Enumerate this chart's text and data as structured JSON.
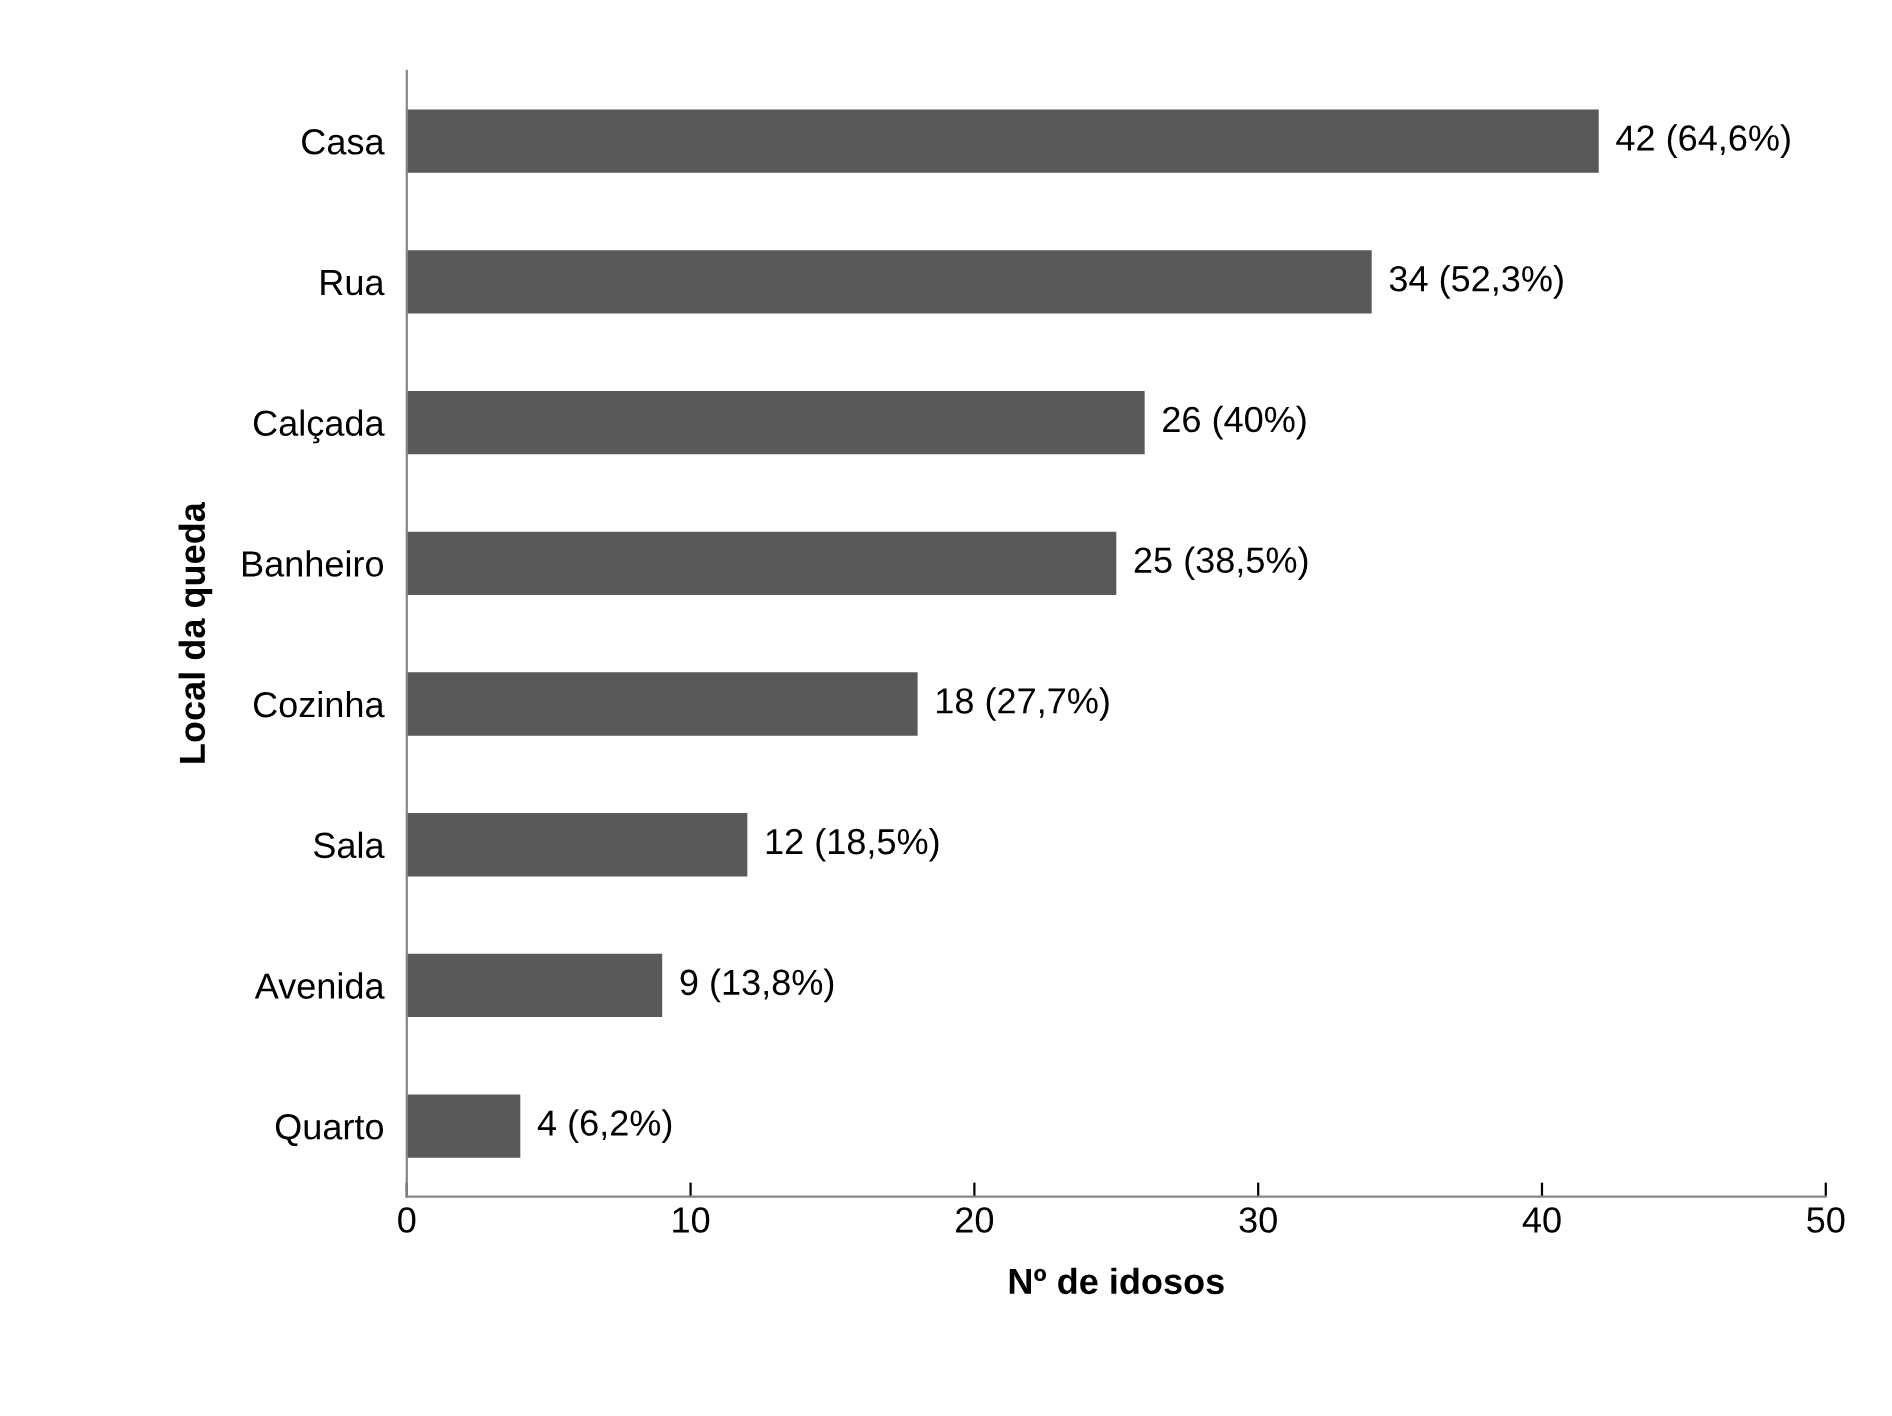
{
  "chart_data": {
    "type": "bar",
    "orientation": "horizontal",
    "xlabel": "Nº de idosos",
    "ylabel": "Local da queda",
    "categories": [
      "Casa",
      "Rua",
      "Calçada",
      "Banheiro",
      "Cozinha",
      "Sala",
      "Avenida",
      "Quarto"
    ],
    "values": [
      42,
      34,
      26,
      25,
      18,
      12,
      9,
      4
    ],
    "value_labels": [
      "42 (64,6%)",
      "34 (52,3%)",
      "26 (40%)",
      "25 (38,5%)",
      "18 (27,7%)",
      "12 (18,5%)",
      "9 (13,8%)",
      "4 (6,2%)"
    ],
    "color": "#595959",
    "xlim": [
      0,
      50
    ],
    "xticks": [
      0,
      10,
      20,
      30,
      40,
      50
    ],
    "grid": false
  }
}
